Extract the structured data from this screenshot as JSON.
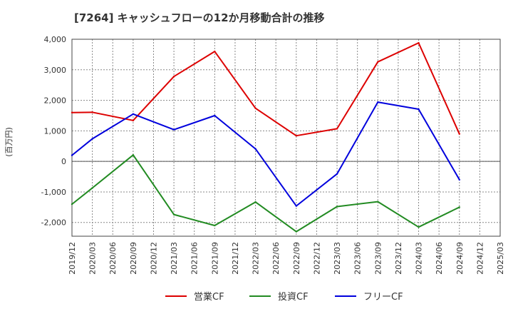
{
  "chart_data": {
    "type": "line",
    "title": "[7264]  キャッシュフローの12か月移動合計の推移",
    "xlabel": "",
    "ylabel": "(百万円)",
    "ylim": [
      -2450,
      4000
    ],
    "y_ticks": [
      4000,
      3000,
      2000,
      1000,
      0,
      -1000,
      -2000
    ],
    "y_tick_labels": [
      "4,000",
      "3,000",
      "2,000",
      "1,000",
      "0",
      "-1,000",
      "-2,000"
    ],
    "categories": [
      "2019/12",
      "2020/03",
      "2020/06",
      "2020/09",
      "2020/12",
      "2021/03",
      "2021/06",
      "2021/09",
      "2021/12",
      "2022/03",
      "2022/06",
      "2022/09",
      "2022/12",
      "2023/03",
      "2023/06",
      "2023/09",
      "2023/12",
      "2024/03",
      "2024/06",
      "2024/09",
      "2024/12",
      "2025/03"
    ],
    "grid": true,
    "legend_position": "bottom",
    "series": [
      {
        "name": "営業CF",
        "color": "#dd0000",
        "values": [
          1600,
          1610,
          null,
          1340,
          null,
          2780,
          null,
          3600,
          null,
          1740,
          null,
          840,
          null,
          1070,
          null,
          3260,
          null,
          3880,
          null,
          900,
          null,
          null
        ]
      },
      {
        "name": "投資CF",
        "color": "#228b22",
        "values": [
          -1400,
          -870,
          null,
          210,
          null,
          -1740,
          null,
          -2100,
          null,
          -1330,
          null,
          -2300,
          null,
          -1480,
          null,
          -1320,
          null,
          -2150,
          null,
          -1500,
          null,
          null
        ]
      },
      {
        "name": "フリーCF",
        "color": "#0000dd",
        "values": [
          200,
          740,
          null,
          1550,
          null,
          1040,
          null,
          1500,
          null,
          410,
          null,
          -1460,
          null,
          -410,
          null,
          1940,
          null,
          1710,
          null,
          -600,
          null,
          null
        ]
      }
    ]
  }
}
